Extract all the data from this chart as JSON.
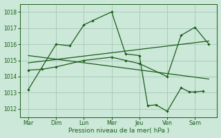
{
  "xlabel": "Pression niveau de la mer( hPa )",
  "bg_color": "#cce8d8",
  "grid_color": "#aaccbb",
  "line_color": "#1a5c1a",
  "ylim": [
    1011.5,
    1018.5
  ],
  "yticks": [
    1012,
    1013,
    1014,
    1015,
    1016,
    1017,
    1018
  ],
  "day_labels": [
    "Mar",
    "Dim",
    "Lun",
    "Mer",
    "Jeu",
    "Ven",
    "Sam"
  ],
  "day_positions": [
    0,
    1,
    2,
    3,
    4,
    5,
    6
  ],
  "s1x": [
    0,
    1.0,
    1.5,
    2.0,
    2.3,
    3.0,
    3.5,
    4.0,
    4.3,
    4.6,
    5.0,
    5.5,
    5.8,
    6.0,
    6.3
  ],
  "s1y": [
    1013.2,
    1016.0,
    1015.9,
    1017.2,
    1017.45,
    1018.0,
    1015.4,
    1015.3,
    1012.2,
    1012.25,
    1011.85,
    1013.3,
    1013.05,
    1013.05,
    1013.1
  ],
  "s2x": [
    0,
    0.5,
    1.0,
    2.0,
    3.0,
    3.5,
    4.0,
    5.0,
    5.5,
    6.0,
    6.5
  ],
  "s2y": [
    1014.4,
    1014.45,
    1014.6,
    1015.0,
    1015.2,
    1015.0,
    1014.8,
    1014.0,
    1016.55,
    1017.05,
    1016.0
  ],
  "t1x": [
    0,
    6.5
  ],
  "t1y": [
    1014.85,
    1016.2
  ],
  "t2x": [
    0,
    6.5
  ],
  "t2y": [
    1015.3,
    1013.85
  ],
  "xlim": [
    -0.3,
    6.8
  ]
}
